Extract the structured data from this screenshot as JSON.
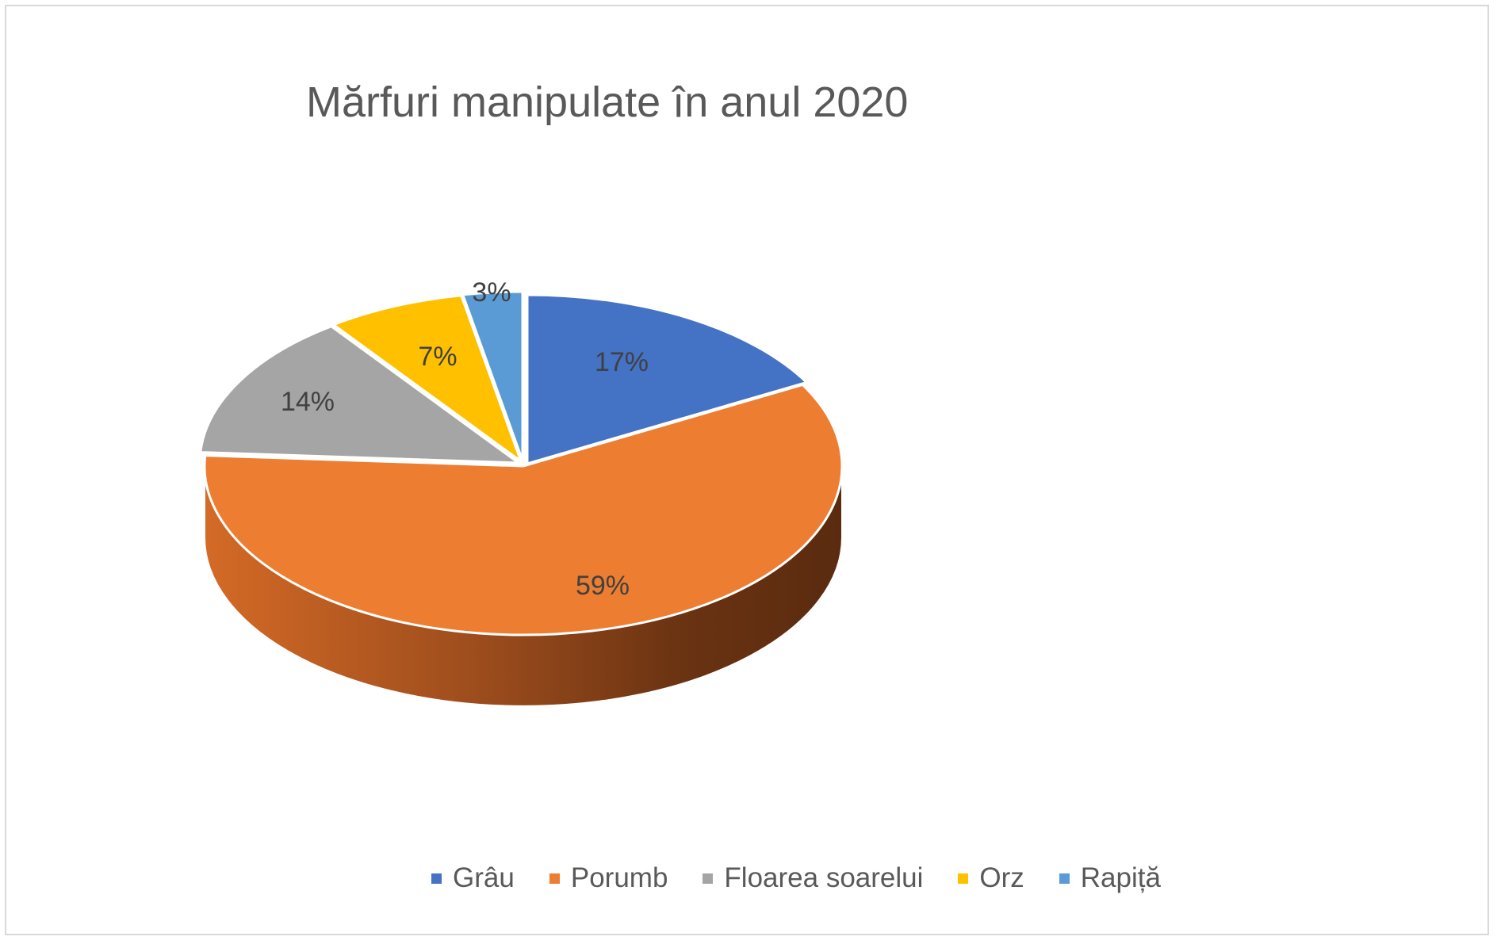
{
  "chart_data": {
    "type": "pie",
    "title": "Mărfuri manipulate în anul 2020",
    "style": "3d",
    "legend_position": "bottom",
    "slices": [
      {
        "name": "Grâu",
        "value": 17,
        "label": "17%",
        "color": "#4472C4"
      },
      {
        "name": "Porumb",
        "value": 59,
        "label": "59%",
        "color": "#ED7D31"
      },
      {
        "name": "Floarea soarelui",
        "value": 14,
        "label": "14%",
        "color": "#A5A5A5"
      },
      {
        "name": "Orz",
        "value": 7,
        "label": "7%",
        "color": "#FFC000"
      },
      {
        "name": "Rapiță",
        "value": 3,
        "label": "3%",
        "color": "#5B9BD5"
      }
    ],
    "legend": [
      "Grâu",
      "Porumb",
      "Floarea soarelui",
      "Orz",
      "Rapiță"
    ]
  }
}
